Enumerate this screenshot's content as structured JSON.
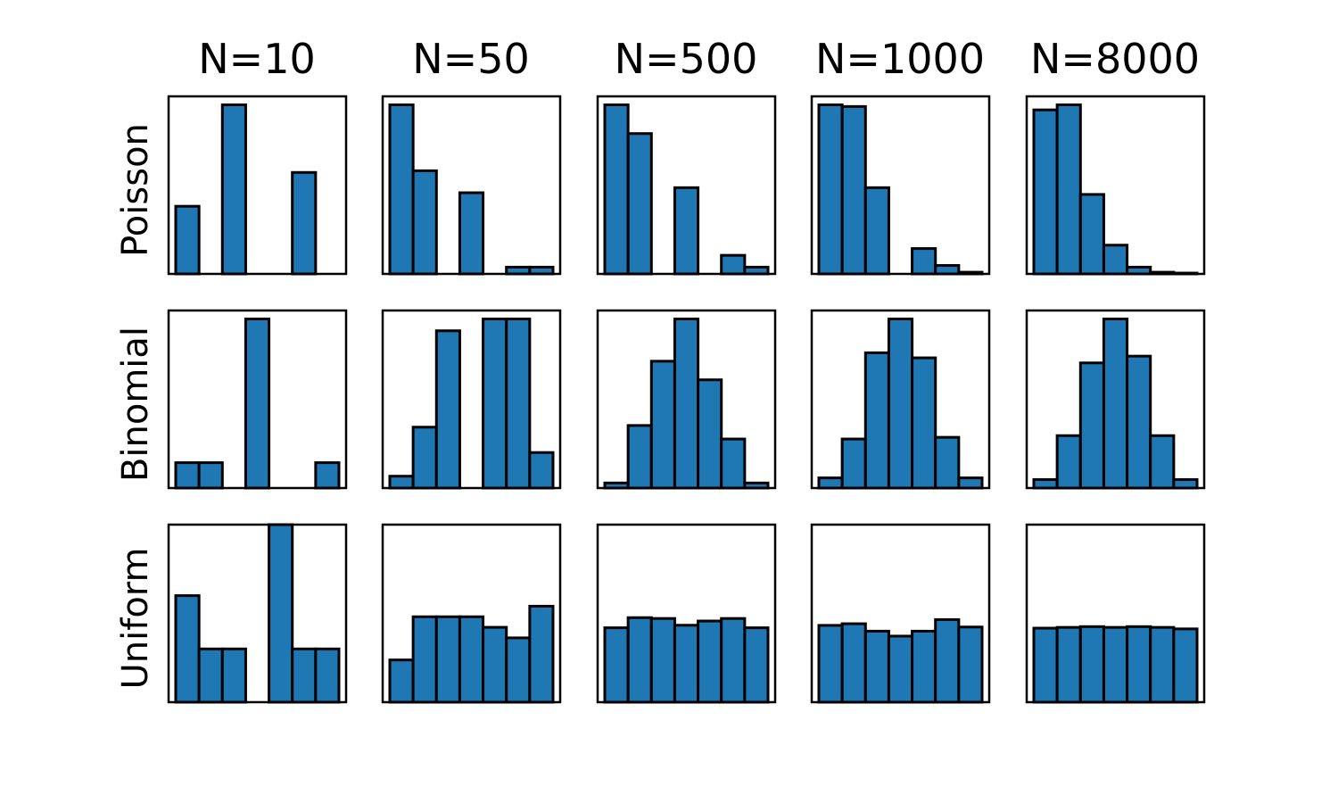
{
  "chart_data": {
    "type": "bar",
    "column_titles": [
      "N=10",
      "N=50",
      "N=500",
      "N=1000",
      "N=8000"
    ],
    "row_labels": [
      "Poisson",
      "Binomial",
      "Uniform"
    ],
    "bar_color": "#1f77b4",
    "edge_color": "#000000",
    "bins_per_panel": 7,
    "axes_ticks": "hidden",
    "panels": [
      [
        {
          "values": [
            0.4,
            0,
            1.0,
            0,
            0,
            0.6,
            0
          ],
          "ylim": [
            0,
            1.05
          ]
        },
        {
          "values": [
            1.0,
            0.61,
            0,
            0.48,
            0,
            0.04,
            0.04
          ],
          "ylim": [
            0,
            1.05
          ]
        },
        {
          "values": [
            1.0,
            0.83,
            0,
            0.51,
            0,
            0.11,
            0.04
          ],
          "ylim": [
            0,
            1.05
          ]
        },
        {
          "values": [
            1.0,
            0.99,
            0.51,
            0,
            0.15,
            0.05,
            0.01
          ],
          "ylim": [
            0,
            1.05
          ]
        },
        {
          "values": [
            0.97,
            1.0,
            0.47,
            0.17,
            0.04,
            0.01,
            0.005
          ],
          "ylim": [
            0,
            1.05
          ]
        }
      ],
      [
        {
          "values": [
            0.15,
            0.15,
            0,
            1.0,
            0,
            0,
            0.15
          ],
          "ylim": [
            0,
            1.05
          ]
        },
        {
          "values": [
            0.07,
            0.36,
            0.93,
            0,
            1.0,
            1.0,
            0.21
          ],
          "ylim": [
            0,
            1.05
          ]
        },
        {
          "values": [
            0.03,
            0.37,
            0.75,
            1.0,
            0.64,
            0.29,
            0.03
          ],
          "ylim": [
            0,
            1.05
          ]
        },
        {
          "values": [
            0.06,
            0.29,
            0.8,
            1.0,
            0.77,
            0.3,
            0.06
          ],
          "ylim": [
            0,
            1.05
          ]
        },
        {
          "values": [
            0.05,
            0.31,
            0.74,
            1.0,
            0.78,
            0.31,
            0.05
          ],
          "ylim": [
            0,
            1.05
          ]
        }
      ],
      [
        {
          "values": [
            0.6,
            0.3,
            0.3,
            0,
            1.0,
            0.3,
            0.3
          ],
          "ylim": [
            0,
            1.0
          ]
        },
        {
          "values": [
            0.44,
            0.89,
            0.89,
            0.89,
            0.78,
            0.67,
            1.0
          ],
          "ylim": [
            0,
            1.85
          ]
        },
        {
          "values": [
            0.88,
            1.0,
            0.99,
            0.91,
            0.96,
            0.99,
            0.88
          ],
          "ylim": [
            0,
            2.1
          ]
        },
        {
          "values": [
            0.93,
            0.95,
            0.86,
            0.8,
            0.86,
            1.0,
            0.91
          ],
          "ylim": [
            0,
            2.15
          ]
        },
        {
          "values": [
            0.98,
            0.99,
            1.0,
            0.99,
            1.0,
            0.99,
            0.97
          ],
          "ylim": [
            0,
            2.35
          ]
        }
      ]
    ]
  }
}
